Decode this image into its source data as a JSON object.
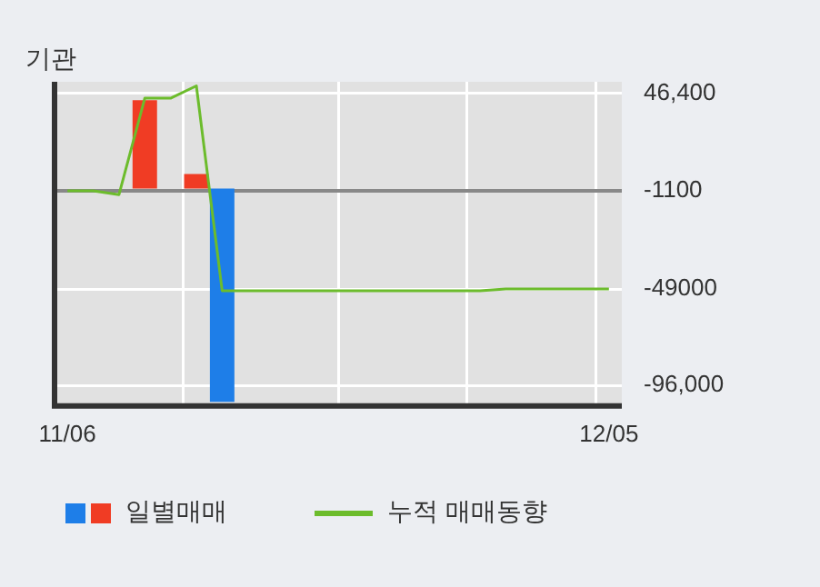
{
  "chart_data": {
    "type": "bar",
    "title": "기관",
    "categories": [
      "11/06",
      null,
      null,
      null,
      null,
      null,
      null,
      null,
      null,
      null,
      null,
      null,
      null,
      null,
      null,
      null,
      null,
      null,
      null,
      null,
      null,
      "12/05"
    ],
    "series": [
      {
        "name": "일별매매",
        "values": [
          null,
          null,
          null,
          43000,
          null,
          7000,
          -104000,
          null,
          null,
          null,
          null,
          null,
          null,
          null,
          null,
          null,
          null,
          null,
          null,
          null,
          null,
          null
        ],
        "colors": [
          "#1e7ee8",
          "#1e7ee8",
          "#1e7ee8",
          "#f03c24",
          "#1e7ee8",
          "#f03c24",
          "#1e7ee8",
          "#1e7ee8",
          "#1e7ee8",
          "#1e7ee8",
          "#1e7ee8",
          "#1e7ee8",
          "#1e7ee8",
          "#1e7ee8",
          "#1e7ee8",
          "#1e7ee8",
          "#1e7ee8",
          "#1e7ee8",
          "#1e7ee8",
          "#1e7ee8",
          "#1e7ee8",
          "#1e7ee8"
        ]
      },
      {
        "type": "line",
        "name": "누적 매매동향",
        "color": "#6cbc2c",
        "values": [
          -1100,
          -1100,
          -3000,
          44000,
          44000,
          50000,
          -49800,
          -49800,
          -49800,
          -49800,
          -49800,
          -49800,
          -49800,
          -49800,
          -49800,
          -49800,
          -49800,
          -49000,
          -49000,
          -49000,
          -49000,
          -49000
        ]
      }
    ],
    "ylim": [
      -106000,
      52000
    ],
    "yticks": [
      {
        "value": 46400,
        "label": "46,400"
      },
      -1100,
      -49000,
      {
        "value": -96000,
        "label": "-96,000"
      }
    ],
    "ref_lines": [
      {
        "axis": "y",
        "value": -1100,
        "color": "#888888"
      }
    ],
    "grid": true,
    "marker": "none",
    "line_style": "solid",
    "legend": "bottom"
  }
}
